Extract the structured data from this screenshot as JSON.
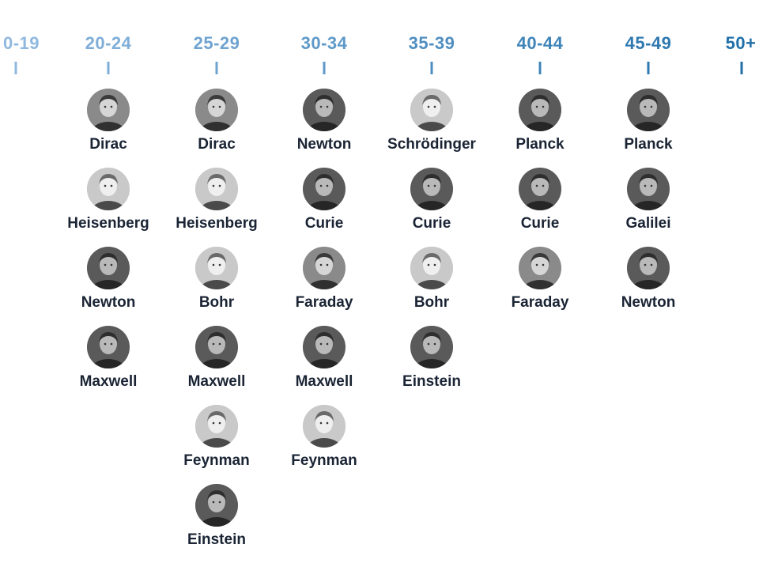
{
  "colors": {
    "axis_start": "#8fb8e0",
    "axis_end": "#1f6fa8"
  },
  "bins": [
    {
      "label": "0-19",
      "scientists": []
    },
    {
      "label": "20-24",
      "scientists": [
        {
          "name": "Dirac",
          "tone": "mid"
        },
        {
          "name": "Heisenberg",
          "tone": "light"
        },
        {
          "name": "Newton",
          "tone": "dark"
        },
        {
          "name": "Maxwell",
          "tone": "dark"
        }
      ]
    },
    {
      "label": "25-29",
      "scientists": [
        {
          "name": "Dirac",
          "tone": "mid"
        },
        {
          "name": "Heisenberg",
          "tone": "light"
        },
        {
          "name": "Bohr",
          "tone": "light"
        },
        {
          "name": "Maxwell",
          "tone": "dark"
        },
        {
          "name": "Feynman",
          "tone": "light"
        },
        {
          "name": "Einstein",
          "tone": "dark"
        }
      ]
    },
    {
      "label": "30-34",
      "scientists": [
        {
          "name": "Newton",
          "tone": "dark"
        },
        {
          "name": "Curie",
          "tone": "dark"
        },
        {
          "name": "Faraday",
          "tone": "mid"
        },
        {
          "name": "Maxwell",
          "tone": "dark"
        },
        {
          "name": "Feynman",
          "tone": "light"
        }
      ]
    },
    {
      "label": "35-39",
      "scientists": [
        {
          "name": "Schrödinger",
          "tone": "light"
        },
        {
          "name": "Curie",
          "tone": "dark"
        },
        {
          "name": "Bohr",
          "tone": "light"
        },
        {
          "name": "Einstein",
          "tone": "dark"
        }
      ]
    },
    {
      "label": "40-44",
      "scientists": [
        {
          "name": "Planck",
          "tone": "dark"
        },
        {
          "name": "Curie",
          "tone": "dark"
        },
        {
          "name": "Faraday",
          "tone": "mid"
        }
      ]
    },
    {
      "label": "45-49",
      "scientists": [
        {
          "name": "Planck",
          "tone": "dark"
        },
        {
          "name": "Galilei",
          "tone": "dark"
        },
        {
          "name": "Newton",
          "tone": "dark"
        }
      ]
    },
    {
      "label": "50+",
      "scientists": []
    }
  ]
}
